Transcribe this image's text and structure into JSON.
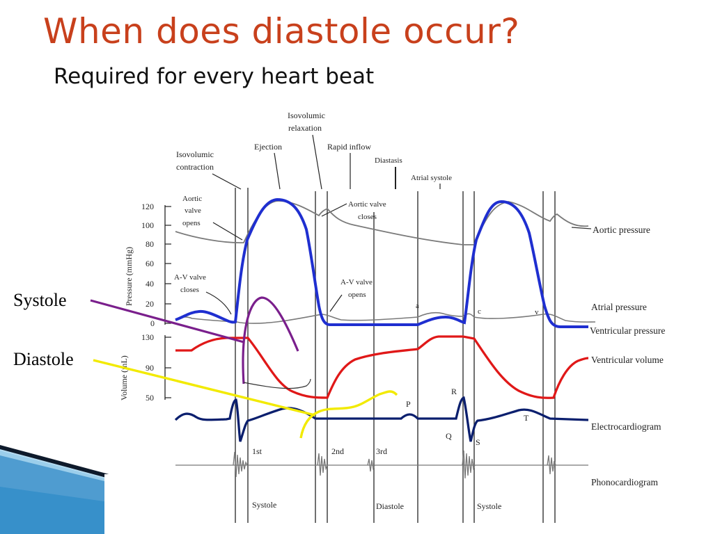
{
  "slide": {
    "title": "When does diastole occur?",
    "subtitle": "Required for every heart beat"
  },
  "colors": {
    "title": "#c8401c",
    "ventricular_pressure": "#1f2fd0",
    "ventricular_volume": "#e01818",
    "ecg": "#0b1f6e",
    "annotation_systole": "#7a1f8c",
    "annotation_diastole": "#f2ea00",
    "corner_accent": "#4aa3d8"
  },
  "diagram": {
    "phases": {
      "isovolumic_contraction": [
        "Isovolumic",
        "contraction"
      ],
      "ejection": "Ejection",
      "isovolumic_relaxation": [
        "Isovolumic",
        "relaxation"
      ],
      "rapid_inflow": "Rapid inflow",
      "diastasis": "Diastasis",
      "atrial_systole": "Atrial systole"
    },
    "events": {
      "aortic_valve_opens": [
        "Aortic",
        "valve",
        "opens"
      ],
      "aortic_valve_closes": [
        "Aortic valve",
        "closes"
      ],
      "av_valve_closes": [
        "A-V valve",
        "closes"
      ],
      "av_valve_opens": [
        "A-V valve",
        "opens"
      ]
    },
    "pressure_axis": {
      "label": "Pressure (mmHg)",
      "ticks": [
        "120",
        "100",
        "80",
        "60",
        "40",
        "20",
        "0"
      ]
    },
    "volume_axis": {
      "label": "Volume (mL)",
      "ticks": [
        "130",
        "90",
        "50"
      ]
    },
    "traces": {
      "aortic_pressure": "Aortic pressure",
      "atrial_pressure": "Atrial pressure",
      "ventricular_pressure": "Ventricular pressure",
      "ventricular_volume": "Ventricular volume",
      "electrocardiogram": "Electrocardiogram",
      "phonocardiogram": "Phonocardiogram"
    },
    "atrial_waves": {
      "a": "a",
      "c": "c",
      "v": "v"
    },
    "ecg_waves": {
      "P": "P",
      "R": "R",
      "Q": "Q",
      "S": "S",
      "T": "T"
    },
    "heart_sounds": {
      "first": "1st",
      "second": "2nd",
      "third": "3rd"
    },
    "cycle_labels": {
      "systole_1": "Systole",
      "diastole": "Diastole",
      "systole_2": "Systole"
    }
  },
  "annotations": {
    "systole": "Systole",
    "diastole": "Diastole"
  }
}
